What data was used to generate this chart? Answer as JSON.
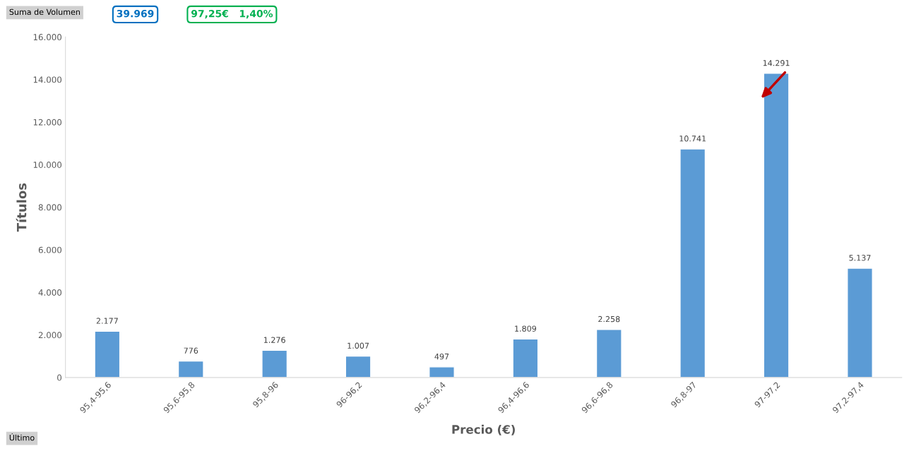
{
  "chart_data": {
    "type": "bar",
    "xlabel": "Precio (€)",
    "ylabel": "Títulos",
    "categories": [
      "95,4-95,6",
      "95,6-95,8",
      "95,8-96",
      "96-96,2",
      "96,2-96,4",
      "96,4-96,6",
      "96,6-96,8",
      "96,8-97",
      "97-97,2",
      "97,2-97,4"
    ],
    "values": [
      2177,
      776,
      1276,
      1007,
      497,
      1809,
      2258,
      10741,
      14291,
      5137
    ],
    "value_labels": [
      "2.177",
      "776",
      "1.276",
      "1.007",
      "497",
      "1.809",
      "2.258",
      "10.741",
      "14.291",
      "5.137"
    ],
    "color": "#5b9bd5",
    "ylim": [
      0,
      16000
    ],
    "yticks": [
      0,
      {
        "value": 2000,
        "label": "2.000"
      },
      {
        "value": 4000,
        "label": "4.000"
      },
      {
        "value": 6000,
        "label": "6.000"
      },
      {
        "value": 8000,
        "label": "8.000"
      },
      {
        "value": 10000,
        "label": "10.000"
      },
      {
        "value": 12000,
        "label": "12.000"
      },
      {
        "value": 14000,
        "label": "14.000"
      },
      {
        "value": 16000,
        "label": "16.000"
      }
    ],
    "grid": false,
    "legend": false,
    "annotations": [
      "Suma de Volumen",
      "39.969",
      "97,25€   1,40%",
      "Último"
    ]
  }
}
